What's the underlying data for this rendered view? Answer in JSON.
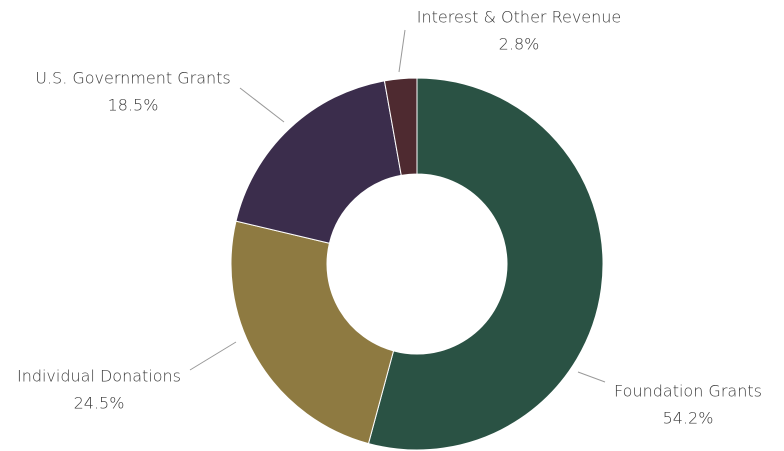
{
  "chart_data": {
    "type": "pie",
    "categories": [
      "Foundation Grants",
      "Individual Donations",
      "U.S. Government Grants",
      "Interest & Other Revenue"
    ],
    "values": [
      54.2,
      24.5,
      18.5,
      2.8
    ],
    "value_labels": [
      "54.2%",
      "24.5%",
      "18.5%",
      "2.8%"
    ],
    "colors": [
      "#2a5244",
      "#8e7a41",
      "#3b2d4c",
      "#4e2a30"
    ]
  }
}
